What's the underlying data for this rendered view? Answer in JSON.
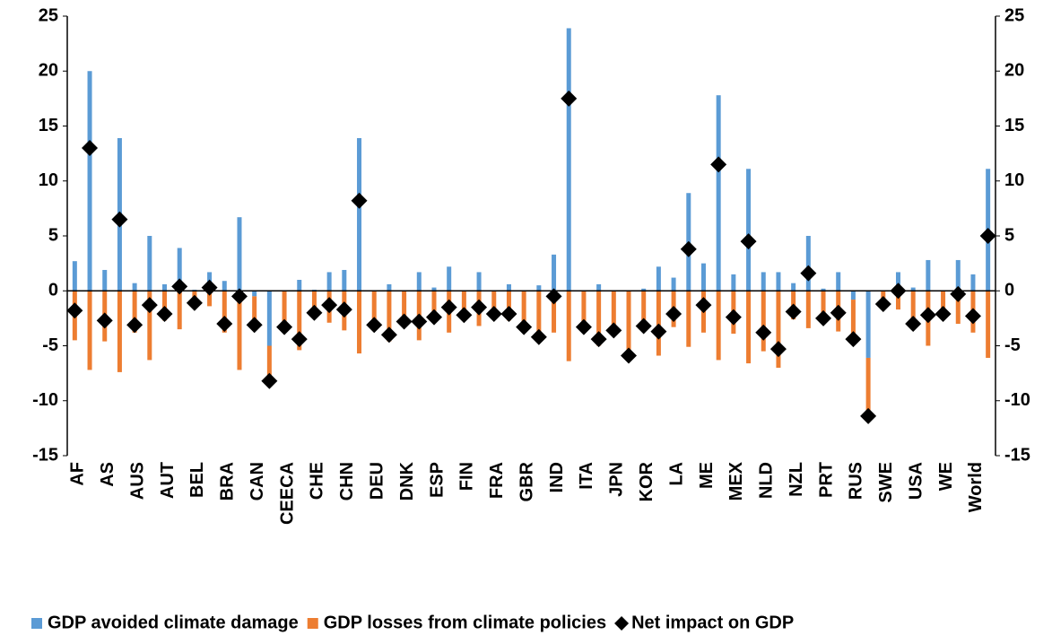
{
  "chart_data": {
    "type": "bar",
    "categories": [
      "AF",
      null,
      "AS",
      null,
      "AUS",
      null,
      "AUT",
      null,
      "BEL",
      null,
      "BRA",
      null,
      "CAN",
      null,
      "CEECA",
      null,
      "CHE",
      null,
      "CHN",
      null,
      "DEU",
      null,
      "DNK",
      null,
      "ESP",
      null,
      "FIN",
      null,
      "FRA",
      null,
      "GBR",
      null,
      "IND",
      null,
      "ITA",
      null,
      "JPN",
      null,
      "KOR",
      null,
      "LA",
      null,
      "ME",
      null,
      "MEX",
      null,
      "NLD",
      null,
      "NZL",
      null,
      "PRT",
      null,
      "RUS",
      null,
      "SWE",
      null,
      "USA",
      null,
      "WE",
      null,
      "World",
      null
    ],
    "series": [
      {
        "name": "GDP avoided climate damage",
        "color": "#5b9bd5",
        "values": [
          2.7,
          20,
          1.9,
          13.9,
          0.7,
          5.0,
          0.6,
          3.9,
          0.1,
          1.7,
          0.9,
          6.7,
          -0.5,
          -5.0,
          0,
          1.0,
          0.1,
          1.7,
          1.9,
          13.9,
          0,
          0.6,
          0,
          1.7,
          0.3,
          2.2,
          0,
          1.7,
          0,
          0.6,
          0,
          0.5,
          3.3,
          23.9,
          0,
          0.6,
          0,
          0,
          0.2,
          2.2,
          1.2,
          8.9,
          2.5,
          17.8,
          1.5,
          11.1,
          1.7,
          1.7,
          0.7,
          5.0,
          0.2,
          1.7,
          -0.8,
          -6.1,
          0,
          1.7,
          0.3,
          2.8,
          0,
          2.8,
          1.5,
          11.1
        ]
      },
      {
        "name": "GDP losses from climate policies",
        "color": "#ed7d31",
        "values": [
          -4.5,
          -7.2,
          -4.6,
          -7.4,
          -3.8,
          -6.3,
          -2.7,
          -3.5,
          -1.2,
          -1.4,
          -3.8,
          -7.2,
          -2.6,
          -3.2,
          -3.3,
          -5.4,
          -2.1,
          -2.9,
          -3.6,
          -5.7,
          -3.1,
          -4.6,
          -2.8,
          -4.5,
          -2.7,
          -3.8,
          -2.2,
          -3.2,
          -2.1,
          -2.7,
          -3.3,
          -4.7,
          -3.8,
          -6.4,
          -3.3,
          -5.0,
          -3.6,
          -5.9,
          -3.3,
          -5.9,
          -3.3,
          -5.1,
          -3.8,
          -6.3,
          -3.9,
          -6.6,
          -5.5,
          -7.0,
          -2.6,
          -3.4,
          -2.7,
          -3.7,
          -3.6,
          -5.3,
          -1.2,
          -1.7,
          -3.3,
          -5.0,
          -2.1,
          -3.0,
          -3.8,
          -6.1
        ]
      },
      {
        "name": "Net impact on GDP",
        "color": "#000000",
        "marker": "diamond",
        "values": [
          -1.8,
          13,
          -2.7,
          6.5,
          -3.1,
          -1.3,
          -2.1,
          0.4,
          -1.1,
          0.3,
          -3.0,
          -0.5,
          -3.1,
          -8.2,
          -3.3,
          -4.4,
          -2.0,
          -1.3,
          -1.7,
          8.2,
          -3.1,
          -4.0,
          -2.8,
          -2.8,
          -2.4,
          -1.5,
          -2.2,
          -1.5,
          -2.1,
          -2.1,
          -3.3,
          -4.2,
          -0.5,
          17.5,
          -3.3,
          -4.4,
          -3.6,
          -5.9,
          -3.2,
          -3.7,
          -2.1,
          3.8,
          -1.3,
          11.5,
          -2.4,
          4.5,
          -3.8,
          -5.3,
          -1.9,
          1.6,
          -2.5,
          -2.0,
          -4.4,
          -11.4,
          -1.2,
          0,
          -3.0,
          -2.2,
          -2.1,
          -0.3,
          -2.3,
          5.0
        ]
      }
    ],
    "ylim": [
      -15,
      25
    ],
    "yticks": [
      -15,
      -10,
      -5,
      0,
      5,
      10,
      15,
      20,
      25
    ],
    "y2lim": [
      -15,
      25
    ],
    "y2ticks": [
      -15,
      -10,
      -5,
      0,
      5,
      10,
      15,
      20,
      25
    ],
    "legend": "bottom"
  }
}
